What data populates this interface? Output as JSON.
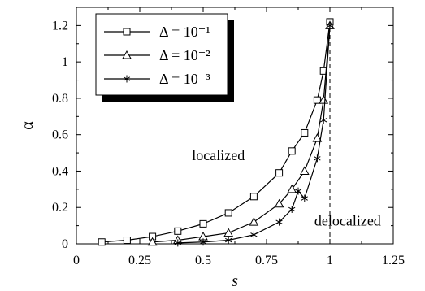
{
  "chart_data": {
    "type": "line",
    "title": "",
    "xlabel": "s",
    "ylabel": "α",
    "xlim": [
      0,
      1.25
    ],
    "ylim": [
      0,
      1.3
    ],
    "xticks": [
      0,
      0.25,
      0.5,
      0.75,
      1,
      1.25
    ],
    "xtick_labels": [
      "0",
      "0.25",
      "0.5",
      "0.75",
      "1",
      "1.25"
    ],
    "yticks": [
      0,
      0.2,
      0.4,
      0.6,
      0.8,
      1.0,
      1.2
    ],
    "ytick_labels": [
      "0",
      "0.2",
      "0.4",
      "0.6",
      "0.8",
      "1",
      "1.2"
    ],
    "grid": false,
    "legend_position": "top-left",
    "series": [
      {
        "name": "Δ = 10⁻¹",
        "marker": "square",
        "x": [
          0.1,
          0.2,
          0.3,
          0.4,
          0.5,
          0.6,
          0.7,
          0.8,
          0.85,
          0.9,
          0.95,
          0.975,
          1.0
        ],
        "y": [
          0.01,
          0.02,
          0.04,
          0.07,
          0.11,
          0.17,
          0.26,
          0.39,
          0.51,
          0.61,
          0.79,
          0.95,
          1.22
        ]
      },
      {
        "name": "Δ = 10⁻²",
        "marker": "triangle",
        "x": [
          0.3,
          0.4,
          0.5,
          0.6,
          0.7,
          0.8,
          0.85,
          0.9,
          0.95,
          0.975,
          1.0
        ],
        "y": [
          0.01,
          0.02,
          0.04,
          0.06,
          0.12,
          0.22,
          0.3,
          0.4,
          0.58,
          0.79,
          1.2
        ]
      },
      {
        "name": "Δ = 10⁻³",
        "marker": "star",
        "x": [
          0.4,
          0.5,
          0.6,
          0.7,
          0.8,
          0.85,
          0.875,
          0.9,
          0.95,
          0.975,
          1.0
        ],
        "y": [
          0.005,
          0.01,
          0.02,
          0.05,
          0.12,
          0.19,
          0.29,
          0.25,
          0.47,
          0.68,
          1.2
        ]
      }
    ],
    "reference_line": {
      "x": 1.0,
      "y_from": 0,
      "y_to": 1.22,
      "style": "dashed"
    },
    "annotations": [
      {
        "text": "localized",
        "x": 0.56,
        "y": 0.46
      },
      {
        "text": "delocalized",
        "x": 1.07,
        "y": 0.1
      }
    ]
  }
}
